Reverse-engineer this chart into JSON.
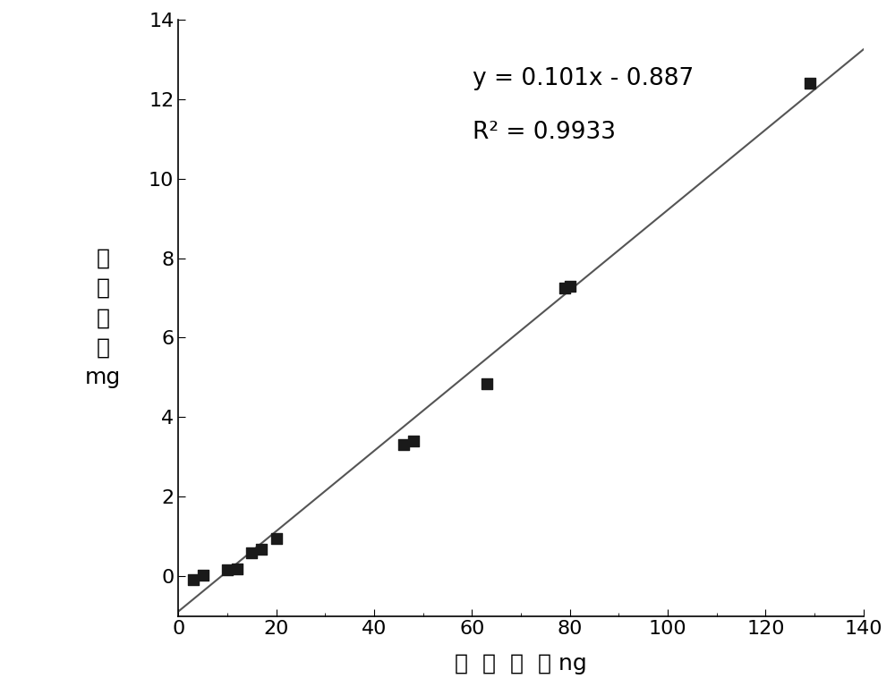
{
  "x_data": [
    3,
    5,
    10,
    12,
    15,
    17,
    20,
    46,
    48,
    63,
    79,
    80,
    129
  ],
  "y_data": [
    -0.08,
    0.02,
    0.15,
    0.18,
    0.58,
    0.68,
    0.95,
    3.3,
    3.4,
    4.85,
    7.25,
    7.3,
    12.4
  ],
  "slope": 0.101,
  "intercept": -0.887,
  "equation_text": "y = 0.101x - 0.887",
  "r2_text": "R² = 0.9933",
  "xlabel_chinese": "钓  擦  拭  量",
  "xlabel_unit": " ng",
  "ylabel_chinese": "钓\n溶\n出\n量",
  "ylabel_unit": "mg",
  "xlim": [
    0,
    140
  ],
  "ylim": [
    -1,
    14
  ],
  "xticks": [
    0,
    20,
    40,
    60,
    80,
    100,
    120,
    140
  ],
  "yticks": [
    0,
    2,
    4,
    6,
    8,
    10,
    12,
    14
  ],
  "marker_color": "#1a1a1a",
  "line_color": "#555555",
  "background_color": "#ffffff",
  "marker_size": 80,
  "figsize": [
    10.0,
    7.68
  ],
  "dpi": 100
}
